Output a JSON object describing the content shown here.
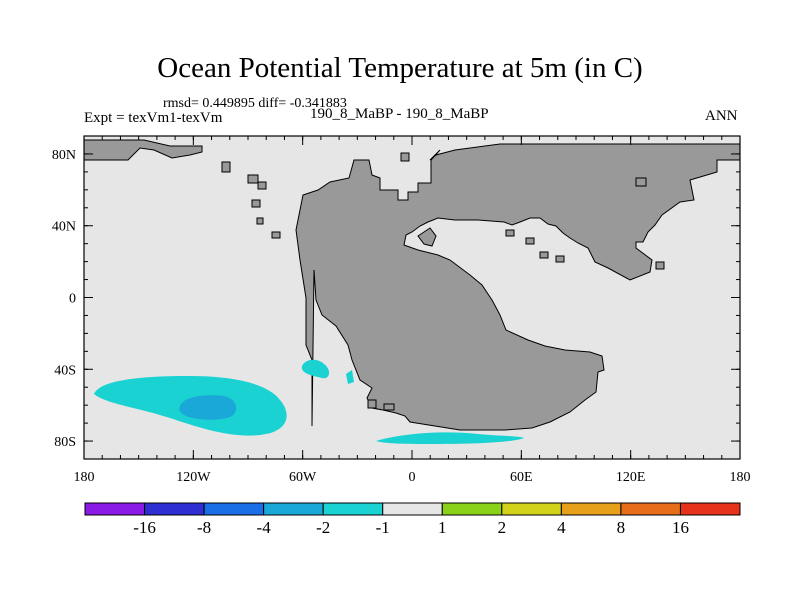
{
  "title": "Ocean Potential Temperature at 5m (in C)",
  "stats_line": "rmsd= 0.449895  diff= -0.341883",
  "expt_line": "Expt = texVm1-texVm",
  "case_line": "190_8_MaBP - 190_8_MaBP",
  "season": "ANN",
  "map": {
    "lon_range": [
      -180,
      180
    ],
    "lat_range": [
      -90,
      90
    ],
    "lon_ticks": [
      {
        "value": -180,
        "label": "180"
      },
      {
        "value": -120,
        "label": "120W"
      },
      {
        "value": -60,
        "label": "60W"
      },
      {
        "value": 0,
        "label": "0"
      },
      {
        "value": 60,
        "label": "60E"
      },
      {
        "value": 120,
        "label": "120E"
      },
      {
        "value": 180,
        "label": "180"
      }
    ],
    "lat_ticks": [
      {
        "value": 80,
        "label": "80N"
      },
      {
        "value": 40,
        "label": "40N"
      },
      {
        "value": 0,
        "label": "0"
      },
      {
        "value": -40,
        "label": "40S"
      },
      {
        "value": -80,
        "label": "80S"
      }
    ],
    "colors": {
      "ocean_neutral": "#e6e6e6",
      "land": "#999999",
      "anomaly_light": "#1ad2d2",
      "anomaly_dark": "#1aa8d8"
    }
  },
  "colorbar": {
    "colors": [
      "#8a1ae6",
      "#2e2ed2",
      "#1a6ee6",
      "#1aa8d8",
      "#1ad2d2",
      "#e6e6e6",
      "#8ad21a",
      "#d2d21a",
      "#e6a01a",
      "#e66e1a",
      "#e6321a"
    ],
    "labels": [
      "-16",
      "-8",
      "-4",
      "-2",
      "-1",
      "1",
      "2",
      "4",
      "8",
      "16"
    ]
  }
}
